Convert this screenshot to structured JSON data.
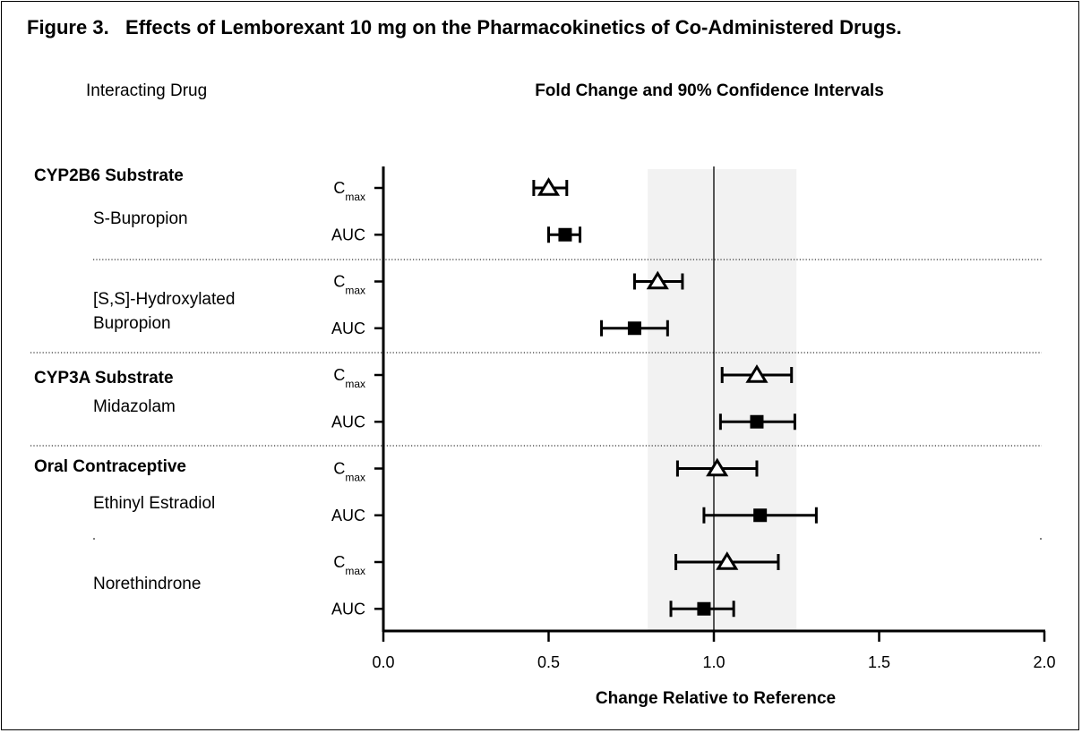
{
  "figure": {
    "title": "Figure 3.   Effects of Lemborexant 10 mg on the Pharmacokinetics of Co-Administered Drugs.",
    "col_header_left": "Interacting Drug",
    "col_header_right": "Fold Change and 90% Confidence Intervals"
  },
  "chart_data": {
    "type": "forest",
    "xlabel": "Change Relative to Reference",
    "xlim": [
      0.0,
      2.0
    ],
    "xticks": [
      0.0,
      0.5,
      1.0,
      1.5,
      2.0
    ],
    "xtick_labels": [
      "0.0",
      "0.5",
      "1.0",
      "1.5",
      "2.0"
    ],
    "reference_line": 1.0,
    "reference_band": [
      0.8,
      1.25
    ],
    "groups": [
      {
        "label": "CYP2B6 Substrate",
        "drugs": [
          {
            "label": "S-Bupropion"
          },
          {
            "label": "[S,S]-Hydroxylated Bupropion"
          }
        ]
      },
      {
        "label": "CYP3A Substrate",
        "drugs": [
          {
            "label": "Midazolam"
          }
        ]
      },
      {
        "label": "Oral Contraceptive",
        "drugs": [
          {
            "label": "Ethinyl Estradiol"
          },
          {
            "label": "Norethindrone"
          }
        ]
      }
    ],
    "drug_label_lines": {
      "S-Bupropion": [
        "S-Bupropion"
      ],
      "[S,S]-Hydroxylated Bupropion": [
        "[S,S]-Hydroxylated",
        "Bupropion"
      ],
      "Midazolam": [
        "Midazolam"
      ],
      "Ethinyl Estradiol": [
        "Ethinyl Estradiol"
      ],
      "Norethindrone": [
        "Norethindrone"
      ]
    },
    "parameters": {
      "cmax": {
        "main": "C",
        "sub": "max",
        "marker": "open-triangle"
      },
      "auc": {
        "main": "AUC",
        "marker": "filled-square"
      }
    },
    "rows": [
      {
        "drug": "S-Bupropion",
        "param": "cmax",
        "estimate": 0.5,
        "lower": 0.455,
        "upper": 0.555
      },
      {
        "drug": "S-Bupropion",
        "param": "auc",
        "estimate": 0.55,
        "lower": 0.5,
        "upper": 0.595
      },
      {
        "drug": "[S,S]-Hydroxylated Bupropion",
        "param": "cmax",
        "estimate": 0.83,
        "lower": 0.76,
        "upper": 0.905
      },
      {
        "drug": "[S,S]-Hydroxylated Bupropion",
        "param": "auc",
        "estimate": 0.76,
        "lower": 0.66,
        "upper": 0.86
      },
      {
        "drug": "Midazolam",
        "param": "cmax",
        "estimate": 1.13,
        "lower": 1.025,
        "upper": 1.235
      },
      {
        "drug": "Midazolam",
        "param": "auc",
        "estimate": 1.13,
        "lower": 1.02,
        "upper": 1.245
      },
      {
        "drug": "Ethinyl Estradiol",
        "param": "cmax",
        "estimate": 1.01,
        "lower": 0.89,
        "upper": 1.13
      },
      {
        "drug": "Ethinyl Estradiol",
        "param": "auc",
        "estimate": 1.14,
        "lower": 0.97,
        "upper": 1.31
      },
      {
        "drug": "Norethindrone",
        "param": "cmax",
        "estimate": 1.04,
        "lower": 0.885,
        "upper": 1.195
      },
      {
        "drug": "Norethindrone",
        "param": "auc",
        "estimate": 0.97,
        "lower": 0.87,
        "upper": 1.06
      }
    ]
  }
}
